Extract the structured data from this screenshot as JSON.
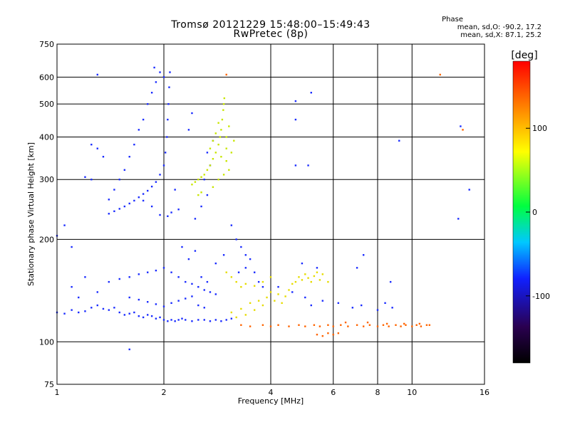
{
  "chart_data": {
    "type": "scatter",
    "title": "Tromsø 20121229 15:48:00–15:49:43",
    "subtitle": "RwPretec (8p)",
    "xlabel": "Frequency [MHz]",
    "ylabel": "Stationary phase Virtual Height [km]",
    "x_scale": "log",
    "y_scale": "log",
    "xlim": [
      1,
      16
    ],
    "ylim": [
      75,
      750
    ],
    "x_ticks": [
      1,
      2,
      4,
      6,
      8,
      10,
      16
    ],
    "y_ticks": [
      75,
      100,
      200,
      300,
      400,
      500,
      600,
      750
    ],
    "grid": true,
    "phase_info": {
      "header": "Phase",
      "o_mode": "mean, sd,O: -90.2, 17.2",
      "x_mode": "mean, sd,X: 87.1, 25.2"
    },
    "colorbar": {
      "label": "[deg]",
      "range": [
        -180,
        180
      ],
      "ticks": [
        100,
        0,
        -100
      ],
      "colors": [
        "#000000",
        "#2a0050",
        "#1020ff",
        "#00c8ff",
        "#00ff40",
        "#ffff00",
        "#ff8000",
        "#ff0000"
      ]
    },
    "series": [
      {
        "points": [
          [
            1.0,
            122
          ],
          [
            1.05,
            121
          ],
          [
            1.1,
            124
          ],
          [
            1.15,
            122
          ],
          [
            1.2,
            123
          ],
          [
            1.25,
            126
          ],
          [
            1.3,
            128
          ],
          [
            1.35,
            125
          ],
          [
            1.4,
            124
          ],
          [
            1.45,
            126
          ],
          [
            1.5,
            122
          ],
          [
            1.55,
            120
          ],
          [
            1.6,
            121
          ],
          [
            1.65,
            122
          ],
          [
            1.7,
            119
          ],
          [
            1.75,
            118
          ],
          [
            1.8,
            120
          ],
          [
            1.85,
            119
          ],
          [
            1.9,
            117
          ],
          [
            1.95,
            118
          ],
          [
            2.0,
            116
          ],
          [
            2.05,
            115
          ],
          [
            2.1,
            116
          ],
          [
            2.15,
            115
          ],
          [
            2.2,
            116
          ],
          [
            2.25,
            117
          ],
          [
            2.3,
            116
          ],
          [
            2.4,
            115
          ],
          [
            2.5,
            116
          ],
          [
            2.6,
            116
          ],
          [
            2.7,
            115
          ],
          [
            2.8,
            116
          ],
          [
            2.9,
            115
          ],
          [
            3.0,
            116
          ],
          [
            3.1,
            117
          ],
          [
            1.3,
            140
          ],
          [
            1.4,
            150
          ],
          [
            1.5,
            153
          ],
          [
            1.6,
            155
          ],
          [
            1.7,
            158
          ],
          [
            1.8,
            160
          ],
          [
            1.9,
            162
          ],
          [
            2.0,
            165
          ],
          [
            2.1,
            160
          ],
          [
            2.2,
            155
          ],
          [
            2.3,
            150
          ],
          [
            2.4,
            148
          ],
          [
            2.5,
            145
          ],
          [
            2.6,
            142
          ],
          [
            2.7,
            140
          ],
          [
            2.8,
            138
          ],
          [
            1.6,
            135
          ],
          [
            1.7,
            133
          ],
          [
            1.8,
            131
          ],
          [
            1.9,
            129
          ],
          [
            2.0,
            127
          ],
          [
            2.1,
            130
          ],
          [
            2.2,
            132
          ],
          [
            2.3,
            134
          ],
          [
            2.4,
            136
          ],
          [
            2.5,
            128
          ],
          [
            2.6,
            126
          ],
          [
            1.4,
            238
          ],
          [
            1.45,
            242
          ],
          [
            1.5,
            246
          ],
          [
            1.55,
            250
          ],
          [
            1.6,
            255
          ],
          [
            1.65,
            260
          ],
          [
            1.7,
            266
          ],
          [
            1.75,
            272
          ],
          [
            1.8,
            278
          ],
          [
            1.85,
            286
          ],
          [
            1.9,
            295
          ],
          [
            1.95,
            310
          ],
          [
            2.0,
            330
          ],
          [
            2.02,
            360
          ],
          [
            2.04,
            400
          ],
          [
            2.05,
            450
          ],
          [
            2.06,
            500
          ],
          [
            2.07,
            560
          ],
          [
            2.08,
            620
          ],
          [
            1.88,
            640
          ],
          [
            1.95,
            620
          ],
          [
            2.0,
            600
          ],
          [
            1.9,
            580
          ],
          [
            1.85,
            540
          ],
          [
            1.8,
            500
          ],
          [
            1.75,
            450
          ],
          [
            1.7,
            420
          ],
          [
            1.65,
            380
          ],
          [
            1.6,
            350
          ],
          [
            1.55,
            320
          ],
          [
            1.5,
            300
          ],
          [
            1.45,
            280
          ],
          [
            1.4,
            262
          ],
          [
            1.95,
            236
          ],
          [
            2.05,
            234
          ],
          [
            2.1,
            240
          ],
          [
            2.2,
            245
          ],
          [
            1.85,
            250
          ],
          [
            1.75,
            260
          ],
          [
            2.15,
            280
          ],
          [
            2.45,
            230
          ],
          [
            2.55,
            250
          ],
          [
            2.65,
            270
          ],
          [
            2.6,
            300
          ],
          [
            2.7,
            330
          ],
          [
            2.65,
            360
          ],
          [
            2.75,
            390
          ],
          [
            3.2,
            200
          ],
          [
            3.3,
            190
          ],
          [
            3.4,
            180
          ],
          [
            3.5,
            175
          ],
          [
            3.6,
            160
          ],
          [
            3.7,
            150
          ],
          [
            3.8,
            145
          ],
          [
            4.2,
            145
          ],
          [
            4.6,
            140
          ],
          [
            5.0,
            135
          ],
          [
            5.2,
            128
          ],
          [
            5.6,
            132
          ],
          [
            6.2,
            130
          ],
          [
            6.8,
            126
          ],
          [
            7.2,
            128
          ],
          [
            8.0,
            124
          ],
          [
            8.4,
            130
          ],
          [
            8.8,
            126
          ],
          [
            1.05,
            220
          ],
          [
            1.1,
            190
          ],
          [
            1.3,
            610
          ],
          [
            1.6,
            95
          ],
          [
            1.0,
            205
          ],
          [
            1.35,
            350
          ],
          [
            1.3,
            370
          ],
          [
            1.25,
            380
          ],
          [
            1.2,
            305
          ],
          [
            1.25,
            300
          ],
          [
            1.15,
            135
          ],
          [
            1.1,
            145
          ],
          [
            1.2,
            155
          ],
          [
            3.1,
            220
          ],
          [
            3.25,
            160
          ],
          [
            3.4,
            165
          ],
          [
            2.35,
            175
          ],
          [
            2.25,
            190
          ],
          [
            2.45,
            185
          ],
          [
            2.55,
            155
          ],
          [
            2.65,
            150
          ],
          [
            2.8,
            170
          ],
          [
            2.95,
            180
          ],
          [
            4.7,
            510
          ],
          [
            5.2,
            540
          ],
          [
            4.7,
            450
          ],
          [
            4.7,
            330
          ],
          [
            5.1,
            330
          ],
          [
            9.2,
            390
          ],
          [
            13.7,
            430
          ],
          [
            13.5,
            230
          ],
          [
            14.5,
            280
          ],
          [
            4.9,
            170
          ],
          [
            5.4,
            165
          ],
          [
            7.0,
            165
          ],
          [
            7.3,
            180
          ],
          [
            8.7,
            150
          ],
          [
            2.35,
            420
          ],
          [
            2.4,
            470
          ]
        ]
      },
      {
        "points": [
          [
            2.4,
            290
          ],
          [
            2.45,
            295
          ],
          [
            2.5,
            300
          ],
          [
            2.55,
            305
          ],
          [
            2.6,
            310
          ],
          [
            2.65,
            320
          ],
          [
            2.7,
            330
          ],
          [
            2.75,
            345
          ],
          [
            2.8,
            360
          ],
          [
            2.85,
            380
          ],
          [
            2.88,
            400
          ],
          [
            2.9,
            420
          ],
          [
            2.92,
            450
          ],
          [
            2.94,
            480
          ],
          [
            2.95,
            500
          ],
          [
            2.96,
            520
          ],
          [
            2.85,
            440
          ],
          [
            2.8,
            410
          ],
          [
            2.75,
            390
          ],
          [
            2.7,
            370
          ],
          [
            2.9,
            350
          ],
          [
            3.0,
            340
          ],
          [
            3.05,
            320
          ],
          [
            3.1,
            360
          ],
          [
            3.15,
            390
          ],
          [
            2.95,
            310
          ],
          [
            2.85,
            300
          ],
          [
            2.75,
            285
          ],
          [
            3.0,
            400
          ],
          [
            3.05,
            430
          ],
          [
            3.0,
            370
          ],
          [
            2.5,
            270
          ],
          [
            2.55,
            275
          ]
        ]
      },
      {
        "points": [
          [
            3.1,
            122
          ],
          [
            3.2,
            118
          ],
          [
            3.3,
            125
          ],
          [
            3.4,
            120
          ],
          [
            3.5,
            130
          ],
          [
            3.6,
            124
          ],
          [
            3.7,
            132
          ],
          [
            3.8,
            128
          ],
          [
            3.9,
            135
          ],
          [
            4.0,
            140
          ],
          [
            4.1,
            132
          ],
          [
            4.2,
            138
          ],
          [
            4.3,
            130
          ],
          [
            4.4,
            136
          ],
          [
            4.5,
            142
          ],
          [
            4.6,
            148
          ],
          [
            4.7,
            150
          ],
          [
            4.8,
            155
          ],
          [
            4.9,
            152
          ],
          [
            5.0,
            158
          ],
          [
            5.1,
            154
          ],
          [
            5.2,
            150
          ],
          [
            5.3,
            156
          ],
          [
            5.4,
            160
          ],
          [
            5.5,
            152
          ],
          [
            3.2,
            150
          ],
          [
            3.3,
            145
          ],
          [
            3.4,
            148
          ],
          [
            3.6,
            146
          ],
          [
            3.8,
            150
          ],
          [
            4.0,
            155
          ],
          [
            3.0,
            160
          ],
          [
            3.1,
            155
          ],
          [
            5.6,
            158
          ],
          [
            5.8,
            150
          ]
        ]
      },
      {
        "points": [
          [
            3.3,
            112
          ],
          [
            3.5,
            111
          ],
          [
            3.8,
            112
          ],
          [
            4.0,
            111
          ],
          [
            4.2,
            112
          ],
          [
            4.5,
            111
          ],
          [
            4.8,
            112
          ],
          [
            5.0,
            111
          ],
          [
            5.3,
            112
          ],
          [
            5.5,
            111
          ],
          [
            5.8,
            112
          ],
          [
            6.0,
            111
          ],
          [
            6.3,
            112
          ],
          [
            6.6,
            111
          ],
          [
            7.0,
            112
          ],
          [
            7.3,
            111
          ],
          [
            7.6,
            112
          ],
          [
            8.0,
            111
          ],
          [
            8.3,
            112
          ],
          [
            8.6,
            111
          ],
          [
            9.0,
            112
          ],
          [
            9.3,
            111
          ],
          [
            9.6,
            112
          ],
          [
            10.0,
            111
          ],
          [
            10.3,
            112
          ],
          [
            10.6,
            111
          ],
          [
            11.0,
            112
          ],
          [
            5.4,
            105
          ],
          [
            5.6,
            104
          ],
          [
            5.8,
            106
          ],
          [
            6.0,
            105
          ],
          [
            6.2,
            106
          ],
          [
            6.5,
            114
          ],
          [
            7.5,
            114
          ],
          [
            8.5,
            113
          ],
          [
            9.5,
            113
          ],
          [
            10.5,
            113
          ],
          [
            11.2,
            112
          ],
          [
            12.0,
            610
          ],
          [
            3.0,
            610
          ],
          [
            13.9,
            420
          ]
        ]
      }
    ]
  }
}
